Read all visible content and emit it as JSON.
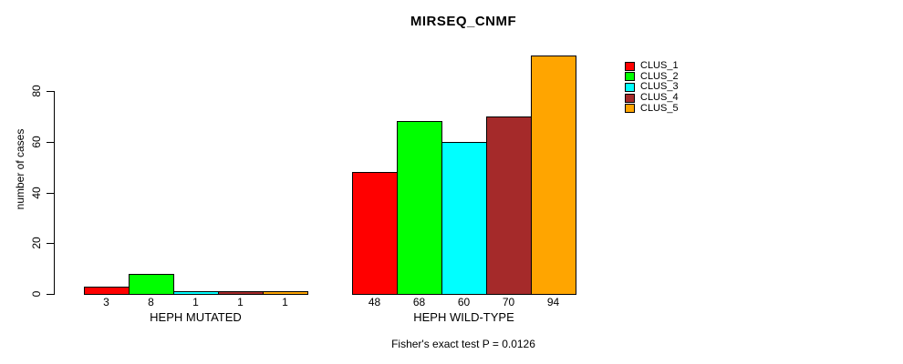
{
  "chart_data": {
    "type": "bar",
    "title": "MIRSEQ_CNMF",
    "ylabel": "number of cases",
    "xlabel": "",
    "yticks": [
      0,
      20,
      40,
      60,
      80
    ],
    "ylim": [
      0,
      94
    ],
    "grid": false,
    "legend_position": "right",
    "legend": [
      {
        "name": "CLUS_1",
        "color": "#FF0000"
      },
      {
        "name": "CLUS_2",
        "color": "#00FF00"
      },
      {
        "name": "CLUS_3",
        "color": "#00FFFF"
      },
      {
        "name": "CLUS_4",
        "color": "#A52A2A"
      },
      {
        "name": "CLUS_5",
        "color": "#FFA500"
      }
    ],
    "categories": [
      "HEPH MUTATED",
      "HEPH WILD-TYPE"
    ],
    "groups": [
      {
        "category": "HEPH MUTATED",
        "values": [
          3,
          8,
          1,
          1,
          1
        ]
      },
      {
        "category": "HEPH WILD-TYPE",
        "values": [
          48,
          68,
          60,
          70,
          94
        ]
      }
    ],
    "series": [
      {
        "name": "CLUS_1",
        "values": [
          3,
          48
        ]
      },
      {
        "name": "CLUS_2",
        "values": [
          8,
          68
        ]
      },
      {
        "name": "CLUS_3",
        "values": [
          1,
          60
        ]
      },
      {
        "name": "CLUS_4",
        "values": [
          1,
          70
        ]
      },
      {
        "name": "CLUS_5",
        "values": [
          1,
          94
        ]
      }
    ],
    "annotation": "Fisher's exact test P = 0.0126"
  },
  "colors": {
    "axis": "#000000",
    "text": "#000000",
    "background": "#FFFFFF"
  }
}
